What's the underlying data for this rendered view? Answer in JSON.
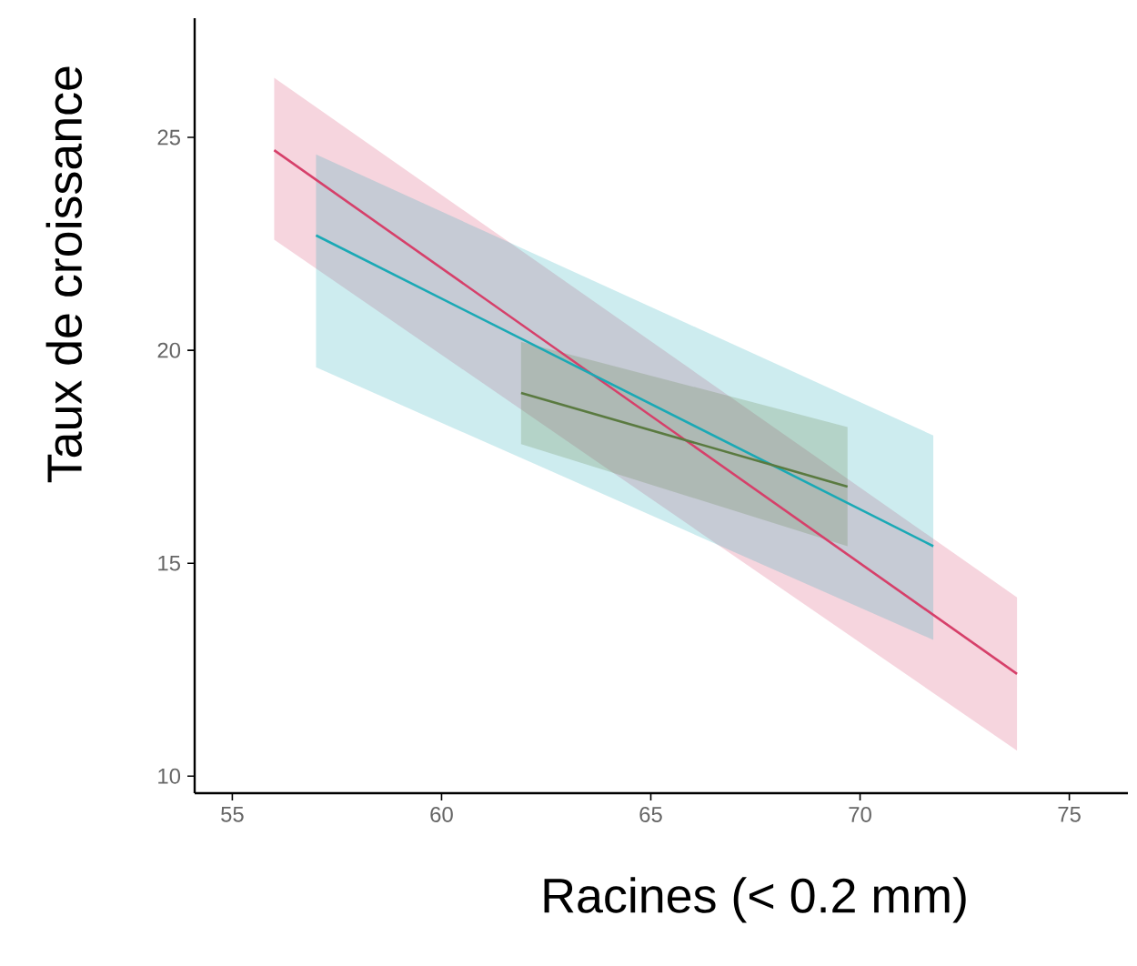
{
  "chart_data": {
    "type": "line",
    "xlabel": "Racines (< 0.2 mm)",
    "ylabel": "Taux de croissance",
    "xlim": [
      54.1,
      76.4
    ],
    "ylim": [
      9.6,
      27.8
    ],
    "xticks": [
      55,
      60,
      65,
      70,
      75
    ],
    "yticks": [
      10,
      15,
      20,
      25
    ],
    "grid": false,
    "series": [
      {
        "color": "#d6406a",
        "x": [
          56.0,
          73.75
        ],
        "values": [
          24.7,
          12.4
        ],
        "lower": [
          22.6,
          10.6
        ],
        "upper": [
          26.4,
          14.2
        ]
      },
      {
        "color": "#1aa9b5",
        "x": [
          57.0,
          71.75
        ],
        "values": [
          22.7,
          15.4
        ],
        "lower": [
          19.6,
          13.2
        ],
        "upper": [
          24.6,
          18.0
        ]
      },
      {
        "color": "#5a7a40",
        "x": [
          61.9,
          69.7
        ],
        "values": [
          19.0,
          16.8
        ],
        "lower": [
          17.8,
          15.4
        ],
        "upper": [
          20.2,
          18.2
        ]
      }
    ]
  }
}
